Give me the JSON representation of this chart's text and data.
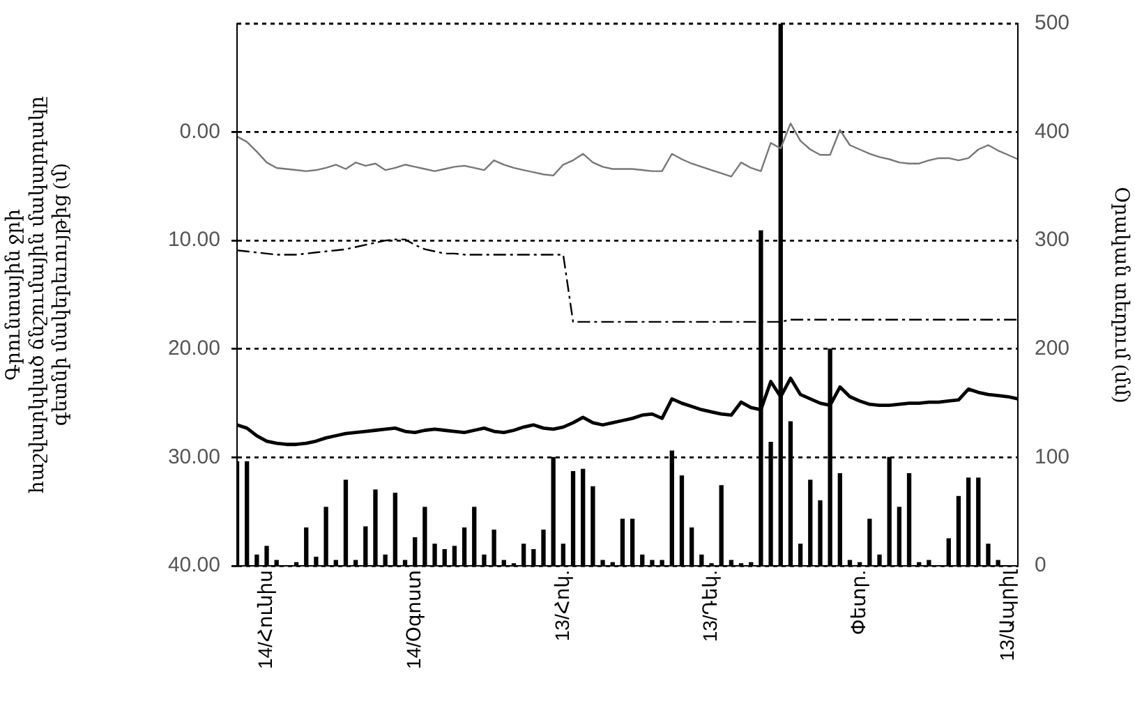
{
  "chart_data": {
    "type": "line",
    "categories": [
      null,
      null,
      null,
      "14/Հունիս",
      null,
      null,
      null,
      null,
      null,
      null,
      null,
      null,
      null,
      null,
      null,
      null,
      null,
      null,
      "14/Օգոստ",
      null,
      null,
      null,
      null,
      null,
      null,
      null,
      null,
      null,
      null,
      null,
      null,
      null,
      null,
      "13/Հոկ.",
      null,
      null,
      null,
      null,
      null,
      null,
      null,
      null,
      null,
      null,
      null,
      null,
      null,
      null,
      "13/Դեկ.",
      null,
      null,
      null,
      null,
      null,
      null,
      null,
      null,
      null,
      null,
      null,
      null,
      null,
      null,
      "Փետր.",
      null,
      null,
      null,
      null,
      null,
      null,
      null,
      null,
      null,
      null,
      null,
      null,
      null,
      null,
      "13/Ապրիլ",
      null
    ],
    "ylabel": "Գրունտային ջրի\nհաշվարկված ճնշումային մակարդակը\nգետնի մակերեւույթից (մ)",
    "y2label": "Օրական տեղում (մմ)",
    "ylim": [
      40,
      -10
    ],
    "yticks": [
      {
        "value": 0,
        "label": "0.00"
      },
      {
        "value": 10,
        "label": "10.00"
      },
      {
        "value": 20,
        "label": "20.00"
      },
      {
        "value": 30,
        "label": "30.00"
      },
      {
        "value": 40,
        "label": "40.00"
      }
    ],
    "y2lim": [
      0,
      500
    ],
    "y2ticks": [
      0,
      100,
      200,
      300,
      400,
      500
    ],
    "grid": "y",
    "legend": false,
    "marker": "none",
    "series": [
      {
        "type": "bar",
        "axis": "y2",
        "color": "#000000",
        "values": [
          96,
          96,
          10,
          18,
          5,
          0,
          3,
          35,
          8,
          54,
          5,
          79,
          5,
          36,
          70,
          10,
          67,
          5,
          26,
          54,
          20,
          15,
          18,
          35,
          54,
          10,
          33,
          5,
          2,
          20,
          15,
          33,
          100,
          20,
          87,
          89,
          73,
          5,
          3,
          43,
          43,
          10,
          5,
          5,
          106,
          83,
          35,
          10,
          2,
          74,
          5,
          2,
          3,
          309,
          114,
          500,
          133,
          20,
          79,
          60,
          200,
          85,
          5,
          3,
          43,
          10,
          100,
          54,
          85,
          3,
          5,
          0,
          25,
          64,
          81,
          81,
          20,
          5,
          0,
          0
        ]
      },
      {
        "color": "#777777",
        "line_style": "solid",
        "values": [
          0.4,
          0.9,
          1.8,
          2.8,
          3.3,
          3.4,
          3.5,
          3.6,
          3.5,
          3.3,
          3.0,
          3.4,
          2.8,
          3.1,
          2.9,
          3.5,
          3.3,
          3.0,
          3.2,
          3.4,
          3.6,
          3.4,
          3.2,
          3.1,
          3.3,
          3.5,
          2.6,
          3.0,
          3.3,
          3.5,
          3.7,
          3.9,
          4.0,
          3.0,
          2.6,
          2.0,
          2.8,
          3.2,
          3.4,
          3.4,
          3.4,
          3.5,
          3.6,
          3.6,
          2.0,
          2.5,
          2.9,
          3.2,
          3.5,
          3.8,
          4.1,
          2.8,
          3.3,
          3.6,
          1.0,
          1.5,
          -0.8,
          0.8,
          1.6,
          2.1,
          2.1,
          -0.2,
          1.2,
          1.6,
          2.0,
          2.3,
          2.5,
          2.8,
          2.9,
          2.9,
          2.6,
          2.4,
          2.4,
          2.6,
          2.4,
          1.6,
          1.2,
          1.7,
          2.1,
          2.5
        ]
      },
      {
        "color": "#000000",
        "line_style": "dashed",
        "values": [
          10.9,
          11.0,
          11.1,
          11.2,
          11.3,
          11.3,
          11.3,
          11.2,
          11.1,
          11.0,
          10.9,
          10.8,
          10.6,
          10.4,
          10.2,
          10.0,
          9.9,
          9.9,
          10.4,
          10.8,
          11.0,
          11.2,
          11.2,
          11.3,
          11.3,
          11.3,
          11.3,
          11.3,
          11.3,
          11.3,
          11.3,
          11.3,
          11.3,
          11.3,
          17.5,
          17.5,
          17.5,
          17.5,
          17.5,
          17.5,
          17.5,
          17.5,
          17.5,
          17.5,
          17.5,
          17.5,
          17.5,
          17.5,
          17.5,
          17.5,
          17.5,
          17.5,
          17.5,
          17.5,
          17.5,
          17.5,
          17.3,
          17.3,
          17.3,
          17.3,
          17.3,
          17.3,
          17.3,
          17.3,
          17.3,
          17.3,
          17.3,
          17.3,
          17.3,
          17.3,
          17.3,
          17.3,
          17.3,
          17.3,
          17.3,
          17.3,
          17.3,
          17.3,
          17.3,
          17.3
        ]
      },
      {
        "color": "#000000",
        "line_style": "solid",
        "values": [
          27.0,
          27.3,
          28.0,
          28.5,
          28.7,
          28.8,
          28.8,
          28.7,
          28.5,
          28.2,
          28.0,
          27.8,
          27.7,
          27.6,
          27.5,
          27.4,
          27.3,
          27.6,
          27.7,
          27.5,
          27.4,
          27.5,
          27.6,
          27.7,
          27.5,
          27.3,
          27.6,
          27.7,
          27.5,
          27.2,
          27.0,
          27.3,
          27.4,
          27.2,
          26.8,
          26.3,
          26.8,
          27.0,
          26.8,
          26.6,
          26.4,
          26.1,
          26.0,
          26.4,
          24.6,
          25.0,
          25.3,
          25.6,
          25.8,
          26.0,
          26.1,
          24.9,
          25.4,
          25.6,
          23.0,
          24.4,
          22.7,
          24.2,
          24.6,
          25.0,
          25.2,
          23.5,
          24.4,
          24.8,
          25.1,
          25.2,
          25.2,
          25.1,
          25.0,
          25.0,
          24.9,
          24.9,
          24.8,
          24.7,
          23.7,
          24.0,
          24.2,
          24.3,
          24.4,
          24.6
        ]
      }
    ]
  }
}
